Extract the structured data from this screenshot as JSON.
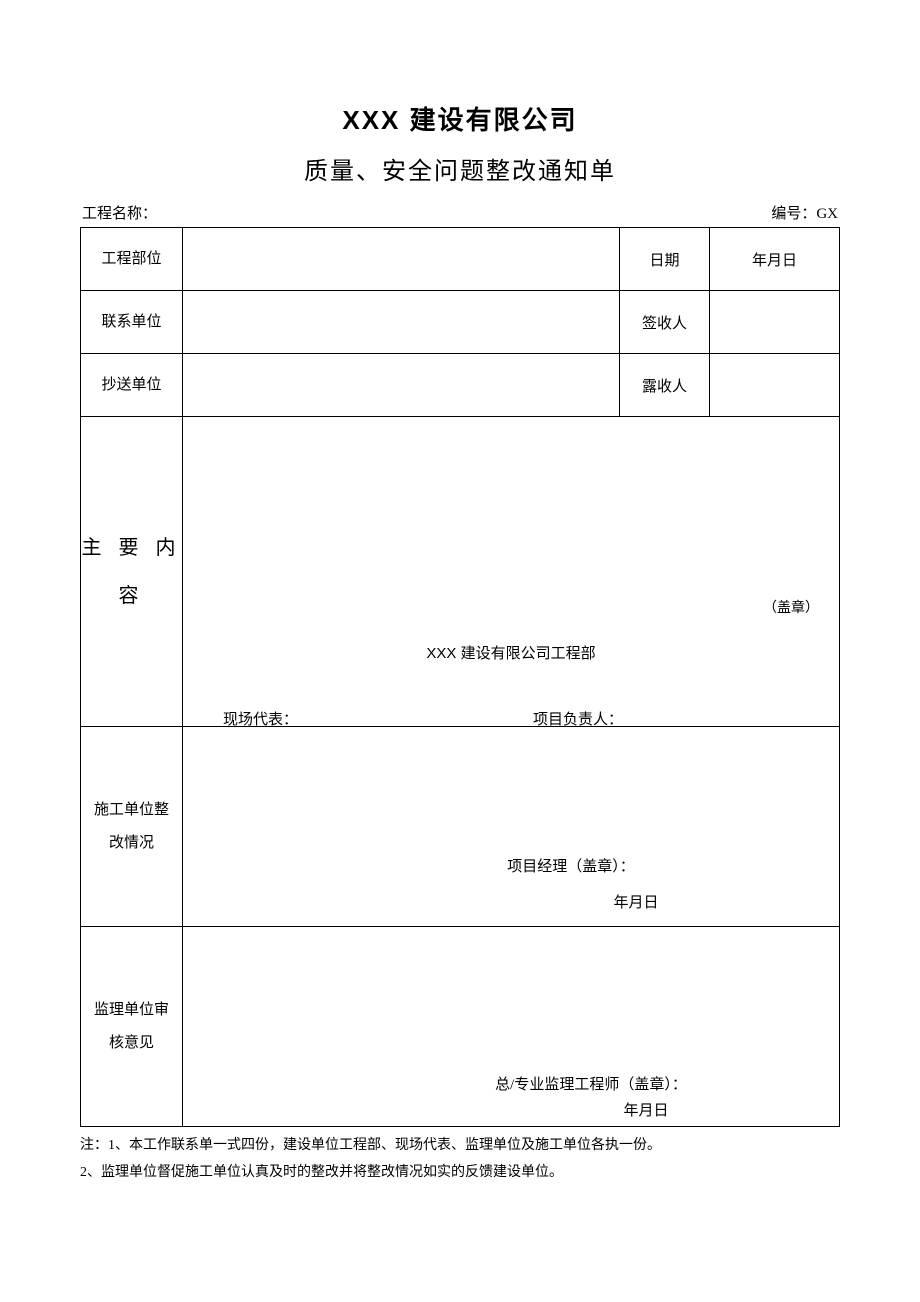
{
  "title1": "XXX 建设有限公司",
  "title2": "质量、安全问题整改通知单",
  "header": {
    "projectNameLabel": "工程名称：",
    "serialLabel": "编号：GX"
  },
  "row1": {
    "col1Label": "工程部位",
    "col2Label": "日期",
    "col3Value": "年月日"
  },
  "row2": {
    "col1Label": "联系单位",
    "col2Label": "签收人"
  },
  "row3": {
    "col1Label": "抄送单位",
    "col2Label": "露收人"
  },
  "mainContent": {
    "label": "主 要 内容",
    "stamp": "（盖章）",
    "dept": "XXX 建设有限公司工程部",
    "siteRep": "现场代表：",
    "projLeader": "项目负责人："
  },
  "construction": {
    "label": "施工单位整改情况",
    "pmStamp": "项目经理（盖章）：",
    "date": "年月日"
  },
  "supervision": {
    "label": "监理单位审核意见",
    "engineerStamp": "总/专业监理工程师（盖章）：",
    "date": "年月日"
  },
  "notes": {
    "line1": "注：1、本工作联系单一式四份，建设单位工程部、现场代表、监理单位及施工单位各执一份。",
    "line2": "2、监理单位督促施工单位认真及时的整改并将整改情况如实的反馈建设单位。"
  }
}
